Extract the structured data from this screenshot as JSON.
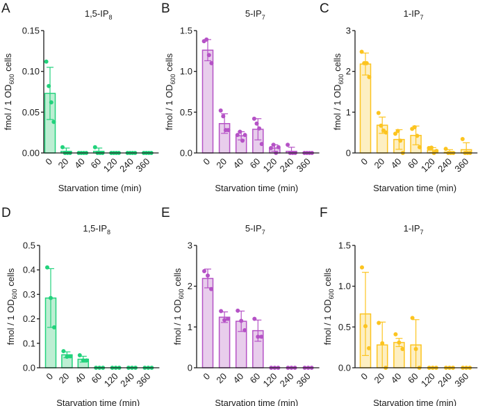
{
  "chart_data": [
    {
      "type": "bar",
      "letter": "A",
      "title": "1,5-IP",
      "title_sub": "8",
      "ylabel_pre": "fmol / 1 OD",
      "ylabel_sub": "600",
      "ylabel_post": " cells",
      "xlabel": "Starvation time (min)",
      "categories": [
        "0",
        "20",
        "40",
        "60",
        "120",
        "240",
        "360"
      ],
      "ylim": [
        0,
        0.15
      ],
      "yticks": [
        "0.00",
        "0.05",
        "0.10",
        "0.15"
      ],
      "ytick_values": [
        0,
        0.05,
        0.1,
        0.15
      ],
      "color": "#22d27c",
      "fill": "#bdeed3",
      "means": [
        0.073,
        0.002,
        0,
        0.002,
        0,
        0,
        0
      ],
      "sd": [
        0.032,
        0.004,
        0,
        0.004,
        0,
        0,
        0
      ],
      "points": [
        [
          0.112,
          0.082,
          0.062,
          0.038
        ],
        [
          0.007,
          0,
          0,
          0
        ],
        [
          0,
          0,
          0,
          0
        ],
        [
          0.007,
          0,
          0,
          0
        ],
        [
          0,
          0,
          0,
          0
        ],
        [
          0,
          0,
          0,
          0
        ],
        [
          0,
          0,
          0,
          0
        ]
      ]
    },
    {
      "type": "bar",
      "letter": "B",
      "title": "5-IP",
      "title_sub": "7",
      "ylabel_pre": "fmol / 1 OD",
      "ylabel_sub": "600",
      "ylabel_post": " cells",
      "xlabel": "Starvation time (min)",
      "categories": [
        "0",
        "20",
        "40",
        "60",
        "120",
        "240",
        "360"
      ],
      "ylim": [
        0,
        1.5
      ],
      "yticks": [
        "0.0",
        "0.5",
        "1.0",
        "1.5"
      ],
      "ytick_values": [
        0,
        0.5,
        1.0,
        1.5
      ],
      "color": "#b552c6",
      "fill": "#e8cdec",
      "means": [
        1.26,
        0.36,
        0.21,
        0.29,
        0.06,
        0.02,
        0
      ],
      "sd": [
        0.13,
        0.12,
        0.05,
        0.13,
        0.04,
        0.05,
        0
      ],
      "points": [
        [
          1.37,
          1.39,
          1.2,
          1.1
        ],
        [
          0.52,
          0.45,
          0.28,
          0.28
        ],
        [
          0.22,
          0.26,
          0.15,
          0.22
        ],
        [
          0.42,
          0.36,
          0.3,
          0.11
        ],
        [
          0.06,
          0.1,
          0,
          0.07
        ],
        [
          0.1,
          0,
          0,
          0
        ],
        [
          0,
          0,
          0,
          0
        ]
      ]
    },
    {
      "type": "bar",
      "letter": "C",
      "title": "1-IP",
      "title_sub": "7",
      "ylabel_pre": "fmol / 1 OD",
      "ylabel_sub": "600",
      "ylabel_post": " cells",
      "xlabel": "Starvation time (min)",
      "categories": [
        "0",
        "20",
        "40",
        "60",
        "120",
        "240",
        "360"
      ],
      "ylim": [
        0,
        3
      ],
      "yticks": [
        "0",
        "1",
        "2",
        "3"
      ],
      "ytick_values": [
        0,
        1,
        2,
        3
      ],
      "color": "#fcc420",
      "fill": "#fdefc2",
      "means": [
        2.18,
        0.68,
        0.33,
        0.43,
        0.07,
        0.02,
        0.08
      ],
      "sd": [
        0.27,
        0.2,
        0.24,
        0.23,
        0.06,
        0.06,
        0.17
      ],
      "points": [
        [
          2.48,
          2.2,
          2.2,
          1.86
        ],
        [
          0.98,
          0.67,
          0.55,
          0.5
        ],
        [
          0.47,
          0.54,
          0.3,
          0
        ],
        [
          0.59,
          0.63,
          0.42,
          0.14
        ],
        [
          0.12,
          0.13,
          0,
          0.05
        ],
        [
          0.1,
          0,
          0,
          0
        ],
        [
          0.34,
          0,
          0,
          0
        ]
      ]
    },
    {
      "type": "bar",
      "letter": "D",
      "title": "1,5-IP",
      "title_sub": "8",
      "ylabel_pre": "fmol / 1 OD",
      "ylabel_sub": "600",
      "ylabel_post": " cells",
      "xlabel": "Starvation time (min)",
      "categories": [
        "0",
        "20",
        "40",
        "60",
        "120",
        "240",
        "360"
      ],
      "ylim": [
        0,
        0.5
      ],
      "yticks": [
        "0.0",
        "0.1",
        "0.2",
        "0.3",
        "0.4",
        "0.5"
      ],
      "ytick_values": [
        0,
        0.1,
        0.2,
        0.3,
        0.4,
        0.5
      ],
      "color": "#22d27c",
      "fill": "#bdeed3",
      "means": [
        0.285,
        0.053,
        0.035,
        0,
        0,
        0,
        0
      ],
      "sd": [
        0.12,
        0.012,
        0.012,
        0,
        0,
        0,
        0
      ],
      "points": [
        [
          0.41,
          0.285,
          0.165
        ],
        [
          0.068,
          0.045,
          0.047
        ],
        [
          0.051,
          0.03,
          0.03
        ],
        [
          0,
          0,
          0
        ],
        [
          0,
          0,
          0
        ],
        [
          0,
          0,
          0
        ],
        [
          0,
          0,
          0
        ]
      ]
    },
    {
      "type": "bar",
      "letter": "E",
      "title": "5-IP",
      "title_sub": "7",
      "ylabel_pre": "fmol / 1 OD",
      "ylabel_sub": "600",
      "ylabel_post": " cells",
      "xlabel": "Starvation time (min)",
      "categories": [
        "0",
        "20",
        "40",
        "60",
        "120",
        "240",
        "360"
      ],
      "ylim": [
        0,
        3
      ],
      "yticks": [
        "0",
        "1",
        "2",
        "3"
      ],
      "ytick_values": [
        0,
        1,
        2,
        3
      ],
      "color": "#b552c6",
      "fill": "#e8cdec",
      "means": [
        2.19,
        1.24,
        1.14,
        0.91,
        0,
        0,
        0
      ],
      "sd": [
        0.23,
        0.13,
        0.25,
        0.26,
        0,
        0,
        0
      ],
      "points": [
        [
          2.37,
          2.26,
          1.93
        ],
        [
          1.39,
          1.17,
          1.2
        ],
        [
          1.4,
          1.15,
          0.92
        ],
        [
          1.2,
          0.76,
          0.76
        ],
        [
          0,
          0,
          0
        ],
        [
          0,
          0,
          0
        ],
        [
          0,
          0,
          0
        ]
      ]
    },
    {
      "type": "bar",
      "letter": "F",
      "title": "1-IP",
      "title_sub": "7",
      "ylabel_pre": "fmol / 1 OD",
      "ylabel_sub": "600",
      "ylabel_post": " cells",
      "xlabel": "Starvation time (min)",
      "categories": [
        "0",
        "20",
        "40",
        "60",
        "120",
        "240",
        "360"
      ],
      "ylim": [
        0,
        1.5
      ],
      "yticks": [
        "0.0",
        "0.5",
        "1.0",
        "1.5"
      ],
      "ytick_values": [
        0,
        0.5,
        1.0,
        1.5
      ],
      "color": "#fcc420",
      "fill": "#fdefc2",
      "means": [
        0.66,
        0.28,
        0.31,
        0.28,
        0,
        0,
        0
      ],
      "sd": [
        0.51,
        0.28,
        0.05,
        0.31,
        0,
        0,
        0
      ],
      "points": [
        [
          1.23,
          0.51,
          0.24
        ],
        [
          0.55,
          0.3,
          0
        ],
        [
          0.41,
          0.31,
          0.23
        ],
        [
          0.61,
          0.23,
          0
        ],
        [
          0,
          0,
          0
        ],
        [
          0,
          0,
          0
        ],
        [
          0,
          0,
          0
        ]
      ]
    }
  ]
}
